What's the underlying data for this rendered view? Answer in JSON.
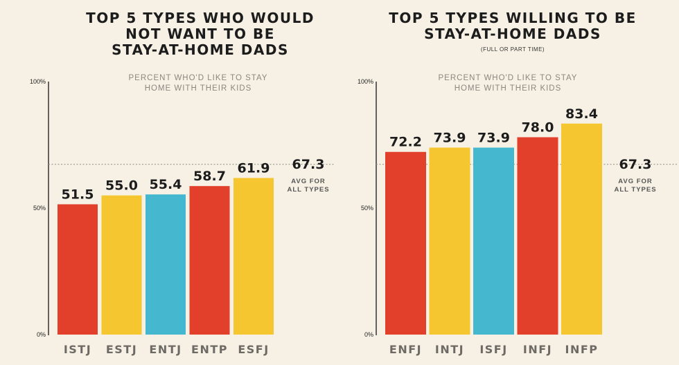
{
  "colors": {
    "background": "#f6f1e4",
    "red": "#e2402b",
    "yellow": "#f6c631",
    "teal": "#45b8cf",
    "axis": "#333333",
    "avg_line": "#9a968e"
  },
  "chart_data": [
    {
      "type": "bar",
      "title_lines": [
        "TOP 5 TYPES WHO WOULD",
        "NOT WANT TO BE",
        "STAY-AT-HOME DADS"
      ],
      "subtitle": "",
      "caption_lines": [
        "PERCENT WHO'D LIKE TO STAY",
        "HOME WITH THEIR KIDS"
      ],
      "categories": [
        "ISTJ",
        "ESTJ",
        "ENTJ",
        "ENTP",
        "ESFJ"
      ],
      "values": [
        51.5,
        55.0,
        55.4,
        58.7,
        61.9
      ],
      "value_labels": [
        "51.5",
        "55.0",
        "55.4",
        "58.7",
        "61.9"
      ],
      "bar_colors": [
        "#e2402b",
        "#f6c631",
        "#45b8cf",
        "#e2402b",
        "#f6c631"
      ],
      "ylim": [
        0,
        100
      ],
      "y_ticks": [
        {
          "value": 100,
          "label": "100%"
        },
        {
          "value": 50,
          "label": "50%"
        },
        {
          "value": 0,
          "label": "0%"
        }
      ],
      "average": {
        "value": 67.3,
        "label": "67.3",
        "text_lines": [
          "AVG FOR",
          "ALL TYPES"
        ]
      }
    },
    {
      "type": "bar",
      "title_lines": [
        "TOP 5 TYPES WILLING TO BE",
        "STAY-AT-HOME DADS"
      ],
      "subtitle": "(FULL OR PART TIME)",
      "caption_lines": [
        "PERCENT WHO'D LIKE TO STAY",
        "HOME WITH THEIR KIDS"
      ],
      "categories": [
        "ENFJ",
        "INTJ",
        "ISFJ",
        "INFJ",
        "INFP"
      ],
      "values": [
        72.2,
        73.9,
        73.9,
        78.0,
        83.4
      ],
      "value_labels": [
        "72.2",
        "73.9",
        "73.9",
        "78.0",
        "83.4"
      ],
      "bar_colors": [
        "#e2402b",
        "#f6c631",
        "#45b8cf",
        "#e2402b",
        "#f6c631"
      ],
      "ylim": [
        0,
        100
      ],
      "y_ticks": [
        {
          "value": 100,
          "label": "100%"
        },
        {
          "value": 50,
          "label": "50%"
        },
        {
          "value": 0,
          "label": "0%"
        }
      ],
      "average": {
        "value": 67.3,
        "label": "67.3",
        "text_lines": [
          "AVG FOR",
          "ALL TYPES"
        ]
      }
    }
  ]
}
